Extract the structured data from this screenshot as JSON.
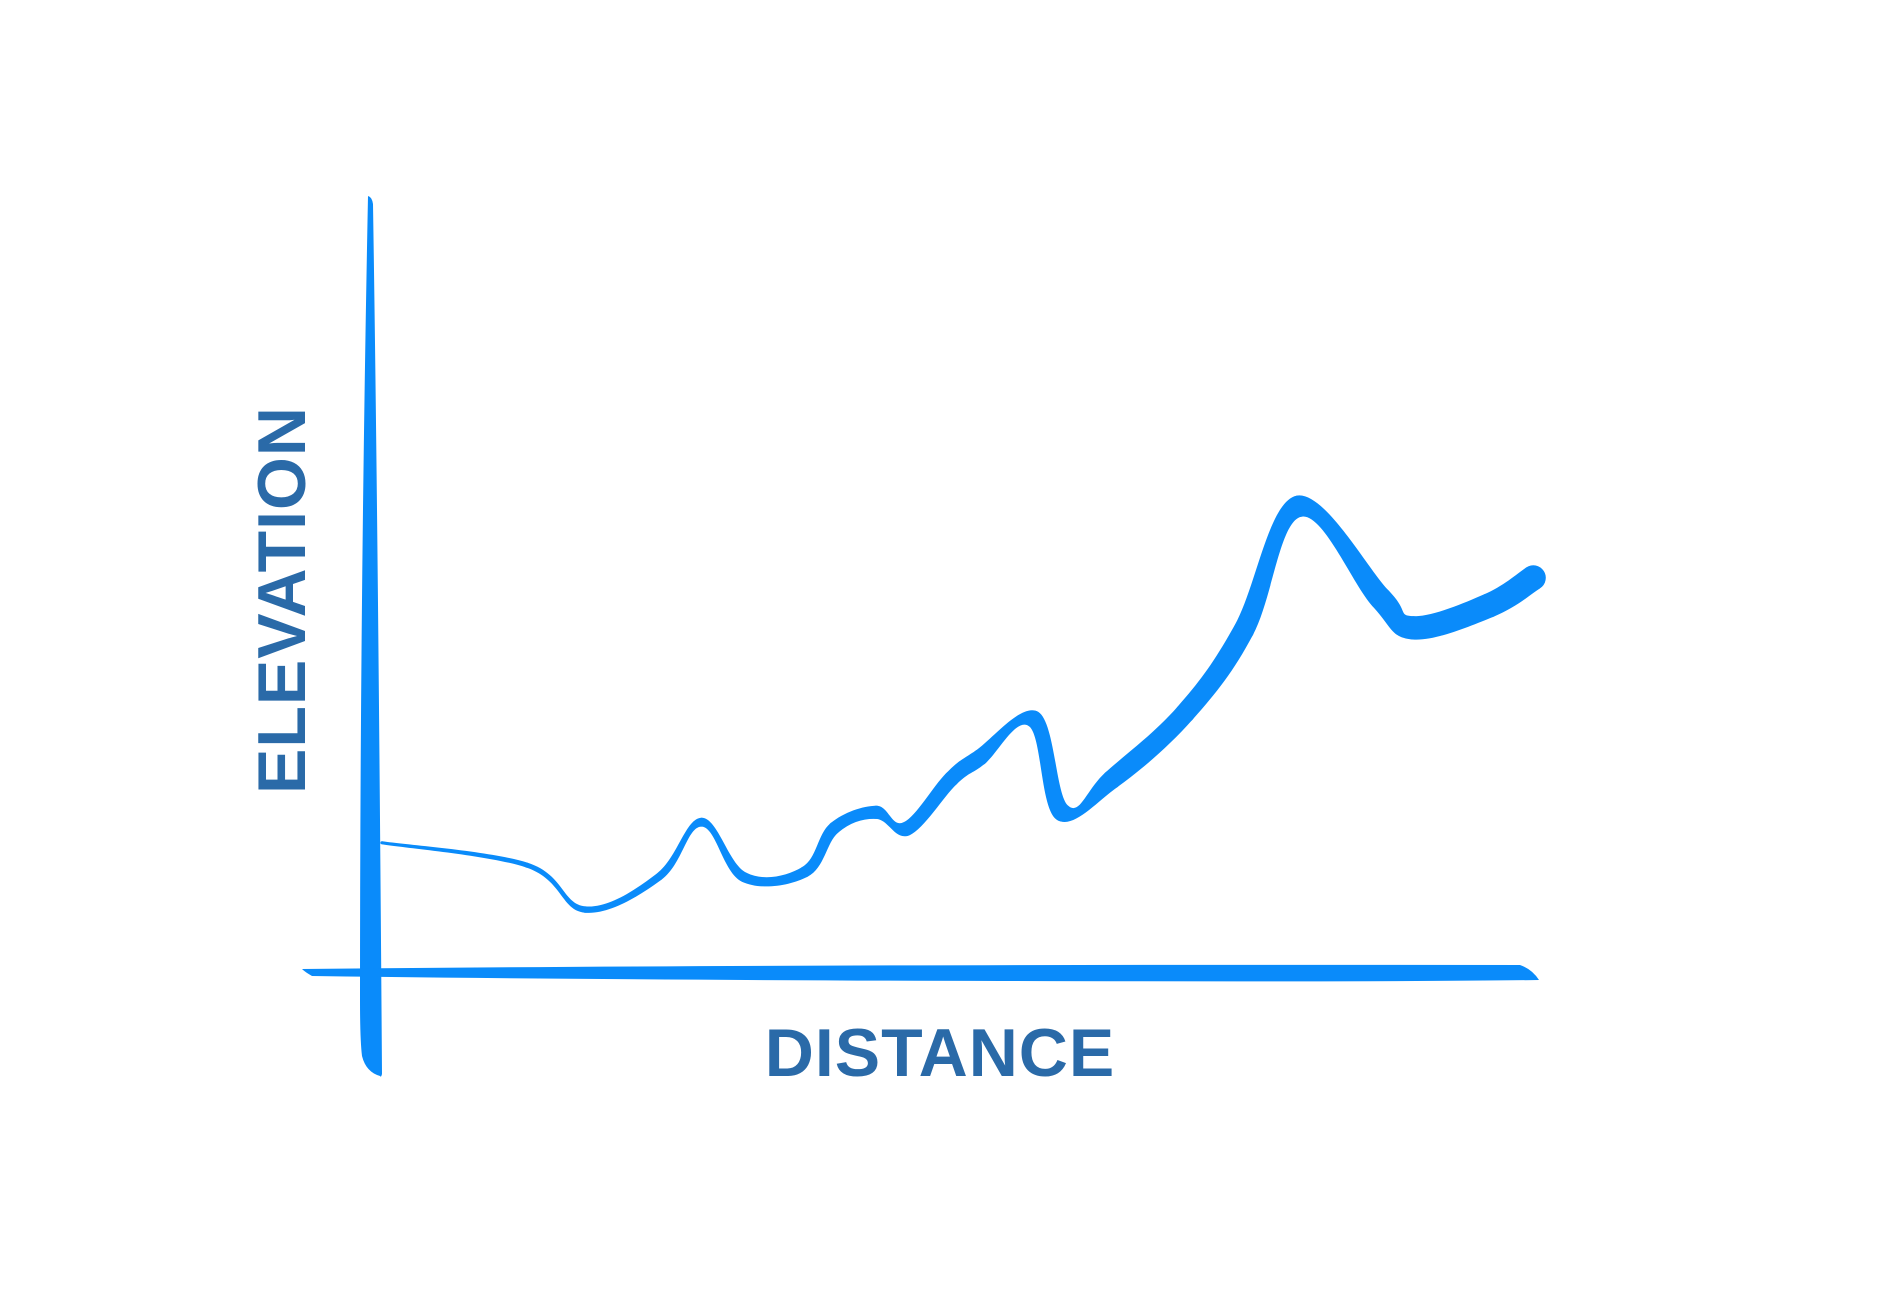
{
  "chart_data": {
    "type": "line",
    "title": "",
    "xlabel": "DISTANCE",
    "ylabel": "ELEVATION",
    "grid": false,
    "legend": "none",
    "x": [
      0,
      10,
      14,
      19,
      22,
      25,
      29,
      31,
      34,
      36,
      39,
      41,
      45,
      47,
      50,
      55,
      59,
      63,
      69,
      71,
      76,
      79
    ],
    "y": [
      16,
      12,
      4,
      10,
      20,
      10,
      11,
      19,
      22,
      19,
      28,
      32,
      39,
      22,
      28,
      40,
      55,
      78,
      61,
      56,
      60,
      65
    ],
    "xlim": [
      0,
      79
    ],
    "ylim": [
      0,
      100
    ],
    "series": [
      {
        "values": [
          16,
          12,
          4,
          10,
          20,
          10,
          11,
          19,
          22,
          19,
          28,
          32,
          39,
          22,
          28,
          40,
          55,
          78,
          61,
          56,
          60,
          65
        ],
        "color": "#0a8bfa"
      }
    ]
  },
  "colors": {
    "line": "#0a8bfa",
    "axis": "#0a8bfa",
    "label": "#2a6aa8"
  }
}
